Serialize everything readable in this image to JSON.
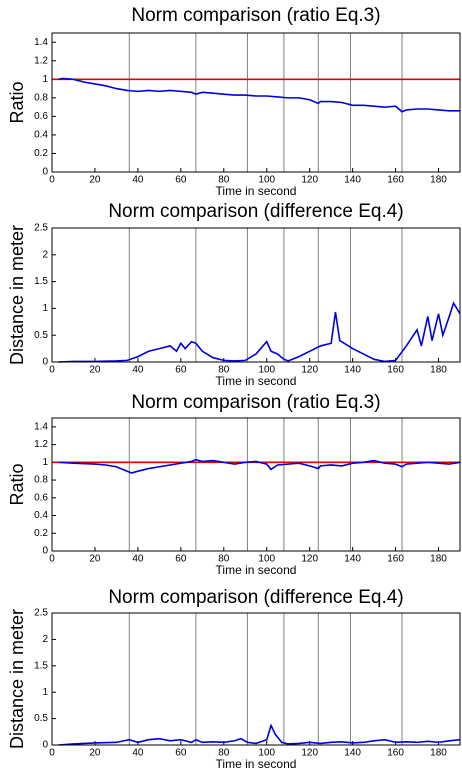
{
  "chart_data": [
    {
      "type": "line",
      "title": "Norm comparison (ratio Eq.3)",
      "xlabel": "Time in second",
      "ylabel": "Ratio",
      "xlim": [
        0,
        190
      ],
      "ylim": [
        0,
        1.5
      ],
      "xticks": [
        0,
        20,
        40,
        60,
        80,
        100,
        120,
        140,
        160,
        180
      ],
      "yticks": [
        0,
        0.2,
        0.4,
        0.6,
        0.8,
        1,
        1.2,
        1.4
      ],
      "vlines": [
        36,
        67,
        91,
        108,
        124,
        139,
        163
      ],
      "vline_color": "#808080",
      "series": [
        {
          "color": "#e00000",
          "x": [
            0,
            190
          ],
          "values": [
            1,
            1
          ]
        },
        {
          "color": "#0000e0",
          "x": [
            3,
            5,
            10,
            15,
            20,
            25,
            30,
            35,
            40,
            45,
            50,
            55,
            60,
            65,
            67,
            70,
            75,
            80,
            85,
            90,
            95,
            100,
            105,
            110,
            115,
            120,
            124,
            125,
            130,
            135,
            140,
            145,
            150,
            155,
            160,
            163,
            165,
            170,
            175,
            180,
            185,
            190
          ],
          "values": [
            1.0,
            1.01,
            1.0,
            0.97,
            0.95,
            0.93,
            0.9,
            0.88,
            0.87,
            0.88,
            0.87,
            0.88,
            0.87,
            0.86,
            0.84,
            0.86,
            0.85,
            0.84,
            0.83,
            0.83,
            0.82,
            0.82,
            0.81,
            0.8,
            0.8,
            0.78,
            0.74,
            0.76,
            0.76,
            0.75,
            0.72,
            0.72,
            0.71,
            0.7,
            0.71,
            0.65,
            0.67,
            0.68,
            0.68,
            0.67,
            0.66,
            0.66
          ]
        }
      ]
    },
    {
      "type": "line",
      "title": "Norm comparison (difference Eq.4)",
      "xlabel": "Time in second",
      "ylabel": "Distance in meter",
      "xlim": [
        0,
        190
      ],
      "ylim": [
        0,
        2.5
      ],
      "xticks": [
        0,
        20,
        40,
        60,
        80,
        100,
        120,
        140,
        160,
        180
      ],
      "yticks": [
        0,
        0.5,
        1,
        1.5,
        2,
        2.5
      ],
      "vlines": [
        36,
        67,
        91,
        108,
        124,
        139,
        163
      ],
      "vline_color": "#808080",
      "series": [
        {
          "color": "#0000e0",
          "x": [
            3,
            10,
            20,
            30,
            35,
            40,
            45,
            50,
            55,
            58,
            60,
            62,
            65,
            67,
            70,
            75,
            80,
            85,
            90,
            95,
            100,
            102,
            105,
            108,
            110,
            115,
            120,
            125,
            130,
            132,
            134,
            136,
            140,
            145,
            150,
            155,
            160,
            165,
            170,
            172,
            175,
            177,
            180,
            182,
            185,
            187,
            190
          ],
          "values": [
            0,
            0.01,
            0.01,
            0.02,
            0.03,
            0.1,
            0.2,
            0.25,
            0.3,
            0.2,
            0.35,
            0.25,
            0.38,
            0.35,
            0.2,
            0.08,
            0.03,
            0.02,
            0.03,
            0.15,
            0.38,
            0.2,
            0.15,
            0.05,
            0.02,
            0.1,
            0.2,
            0.3,
            0.35,
            0.93,
            0.4,
            0.35,
            0.25,
            0.15,
            0.05,
            0.01,
            0.03,
            0.3,
            0.6,
            0.3,
            0.85,
            0.4,
            0.9,
            0.5,
            0.85,
            1.1,
            0.9
          ]
        }
      ]
    },
    {
      "type": "line",
      "title": "Norm comparison (ratio Eq.3)",
      "xlabel": "Time in second",
      "ylabel": "Ratio",
      "xlim": [
        0,
        190
      ],
      "ylim": [
        0,
        1.5
      ],
      "xticks": [
        0,
        20,
        40,
        60,
        80,
        100,
        120,
        140,
        160,
        180
      ],
      "yticks": [
        0,
        0.2,
        0.4,
        0.6,
        0.8,
        1,
        1.2,
        1.4
      ],
      "vlines": [
        36,
        67,
        91,
        108,
        124,
        139,
        163
      ],
      "vline_color": "#808080",
      "series": [
        {
          "color": "#e00000",
          "x": [
            0,
            190
          ],
          "values": [
            1,
            1
          ]
        },
        {
          "color": "#0000e0",
          "x": [
            3,
            10,
            20,
            25,
            30,
            35,
            37,
            40,
            45,
            50,
            55,
            60,
            65,
            67,
            70,
            75,
            80,
            85,
            90,
            95,
            100,
            102,
            105,
            110,
            115,
            120,
            124,
            125,
            130,
            135,
            140,
            145,
            150,
            155,
            160,
            163,
            165,
            170,
            175,
            180,
            185,
            190
          ],
          "values": [
            1.0,
            0.99,
            0.98,
            0.97,
            0.95,
            0.9,
            0.88,
            0.9,
            0.93,
            0.95,
            0.97,
            0.99,
            1.01,
            1.03,
            1.01,
            1.02,
            1.0,
            0.98,
            1.0,
            1.01,
            0.98,
            0.92,
            0.97,
            0.98,
            0.99,
            0.96,
            0.93,
            0.96,
            0.97,
            0.96,
            0.99,
            1.0,
            1.02,
            0.99,
            0.98,
            0.95,
            0.98,
            0.99,
            1.0,
            0.99,
            0.98,
            1.0
          ]
        }
      ]
    },
    {
      "type": "line",
      "title": "Norm comparison (difference Eq.4)",
      "xlabel": "Time in second",
      "ylabel": "Distance in meter",
      "xlim": [
        0,
        190
      ],
      "ylim": [
        0,
        2.5
      ],
      "xticks": [
        0,
        20,
        40,
        60,
        80,
        100,
        120,
        140,
        160,
        180
      ],
      "yticks": [
        0,
        0.5,
        1,
        1.5,
        2,
        2.5
      ],
      "vlines": [
        36,
        67,
        91,
        108,
        124,
        139,
        163
      ],
      "vline_color": "#808080",
      "series": [
        {
          "color": "#0000e0",
          "x": [
            3,
            10,
            20,
            30,
            36,
            40,
            45,
            50,
            55,
            60,
            65,
            67,
            70,
            75,
            80,
            85,
            88,
            91,
            95,
            100,
            102,
            104,
            107,
            110,
            115,
            120,
            125,
            130,
            135,
            140,
            145,
            150,
            155,
            160,
            165,
            170,
            175,
            180,
            185,
            190
          ],
          "values": [
            0,
            0.02,
            0.04,
            0.05,
            0.1,
            0.05,
            0.1,
            0.12,
            0.08,
            0.1,
            0.05,
            0.1,
            0.05,
            0.06,
            0.05,
            0.08,
            0.12,
            0.05,
            0.03,
            0.1,
            0.37,
            0.2,
            0.05,
            0.02,
            0.03,
            0.05,
            0.03,
            0.05,
            0.06,
            0.04,
            0.05,
            0.08,
            0.1,
            0.05,
            0.06,
            0.05,
            0.07,
            0.05,
            0.08,
            0.1
          ]
        }
      ]
    }
  ]
}
